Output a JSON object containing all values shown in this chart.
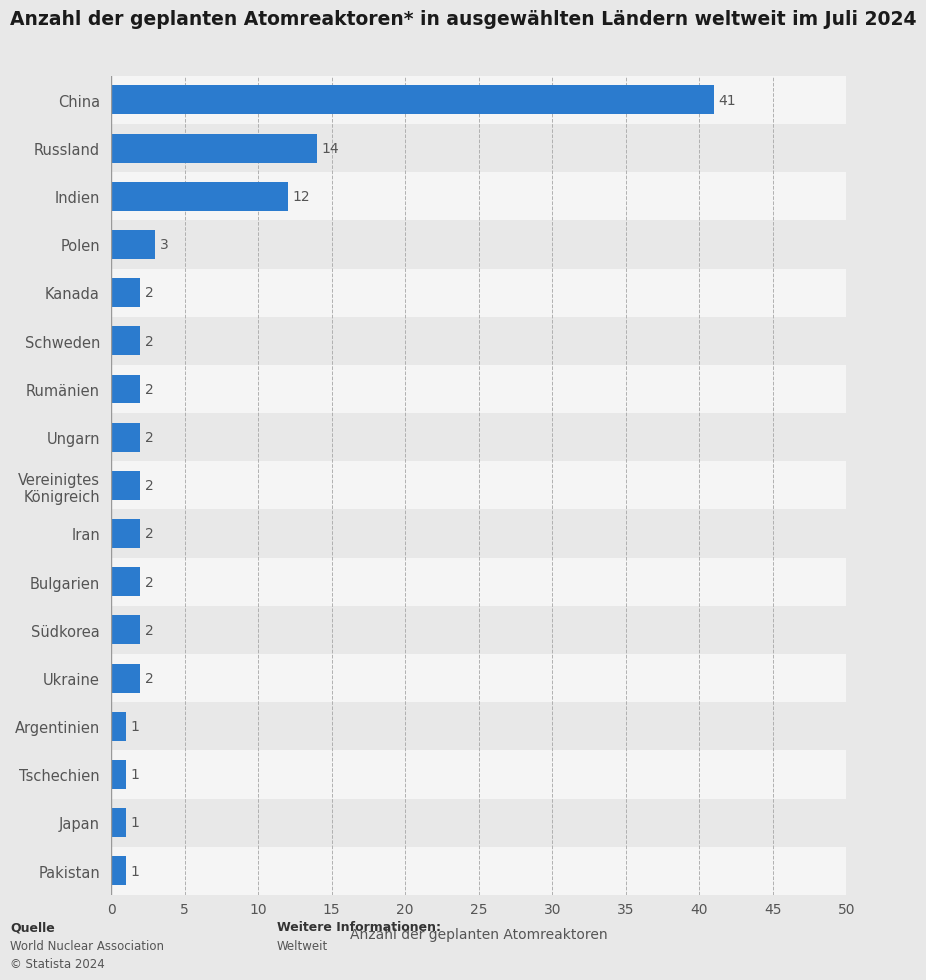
{
  "title": "Anzahl der geplanten Atomreaktoren* in ausgewählten Ländern weltweit im Juli 2024",
  "categories": [
    "Pakistan",
    "Japan",
    "Tschechien",
    "Argentinien",
    "Ukraine",
    "Südkorea",
    "Bulgarien",
    "Iran",
    "Vereinigtes\nKönigreich",
    "Ungarn",
    "Rumänien",
    "Schweden",
    "Kanada",
    "Polen",
    "Indien",
    "Russland",
    "China"
  ],
  "values": [
    1,
    1,
    1,
    1,
    2,
    2,
    2,
    2,
    2,
    2,
    2,
    2,
    2,
    3,
    12,
    14,
    41
  ],
  "bar_color": "#2b7bce",
  "xlabel": "Anzahl der geplanten Atomreaktoren",
  "xlim": [
    0,
    50
  ],
  "xticks": [
    0,
    5,
    10,
    15,
    20,
    25,
    30,
    35,
    40,
    45,
    50
  ],
  "background_color": "#e8e8e8",
  "row_color_even": "#e8e8e8",
  "row_color_odd": "#f5f5f5",
  "source_label": "Quelle",
  "source_text": "World Nuclear Association\n© Statista 2024",
  "info_label": "Weitere Informationen:",
  "info_text": "Weltweit",
  "title_fontsize": 13.5,
  "label_fontsize": 10.5,
  "tick_fontsize": 10,
  "value_label_fontsize": 10
}
